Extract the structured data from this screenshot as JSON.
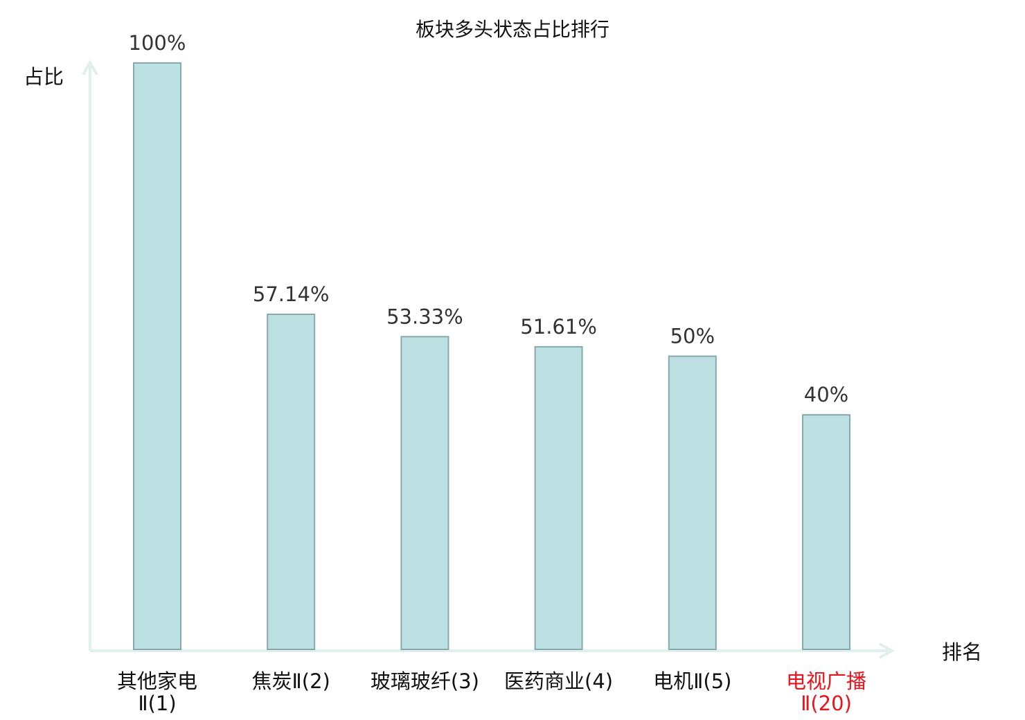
{
  "chart_data": {
    "type": "bar",
    "title": "板块多头状态占比排行",
    "ylabel": "占比",
    "xlabel": "排名",
    "ylim": [
      0,
      100
    ],
    "categories": [
      {
        "line1": "其他家电",
        "line2": "Ⅱ(1)",
        "highlight": false
      },
      {
        "line1": "焦炭Ⅱ(2)",
        "line2": "",
        "highlight": false
      },
      {
        "line1": "玻璃玻纤(3)",
        "line2": "",
        "highlight": false
      },
      {
        "line1": "医药商业(4)",
        "line2": "",
        "highlight": false
      },
      {
        "line1": "电机Ⅱ(5)",
        "line2": "",
        "highlight": false
      },
      {
        "line1": "电视广播",
        "line2": "Ⅱ(20)",
        "highlight": true
      }
    ],
    "values": [
      100,
      57.14,
      53.33,
      51.61,
      50,
      40
    ],
    "value_labels": [
      "100%",
      "57.14%",
      "53.33%",
      "51.61%",
      "50%",
      "40%"
    ],
    "grid": false,
    "colors": {
      "bar_fill": "#bde0e3",
      "bar_stroke": "#86a9ab",
      "axis": "#dff0ee",
      "highlight_text": "#e8141c",
      "normal_text": "#111111"
    }
  }
}
